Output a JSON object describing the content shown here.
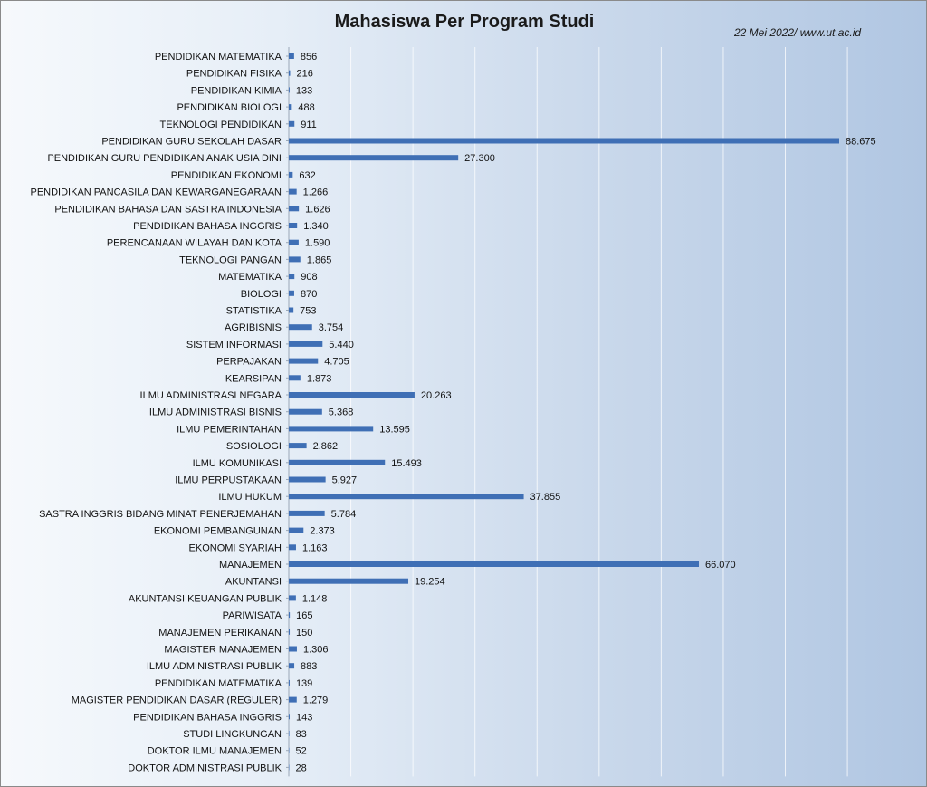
{
  "chart_data": {
    "type": "bar",
    "orientation": "horizontal",
    "title": "Mahasiswa Per Program Studi",
    "source_note": "22 Mei 2022/ www.ut.ac.id",
    "categories": [
      "PENDIDIKAN MATEMATIKA",
      "PENDIDIKAN FISIKA",
      "PENDIDIKAN KIMIA",
      "PENDIDIKAN BIOLOGI",
      "TEKNOLOGI PENDIDIKAN",
      "PENDIDIKAN GURU SEKOLAH DASAR",
      "PENDIDIKAN GURU PENDIDIKAN ANAK USIA DINI",
      "PENDIDIKAN EKONOMI",
      "PENDIDIKAN PANCASILA DAN KEWARGANEGARAAN",
      "PENDIDIKAN BAHASA DAN SASTRA INDONESIA",
      "PENDIDIKAN BAHASA INGGRIS",
      "PERENCANAAN WILAYAH DAN KOTA",
      "TEKNOLOGI PANGAN",
      "MATEMATIKA",
      "BIOLOGI",
      "STATISTIKA",
      "AGRIBISNIS",
      "SISTEM INFORMASI",
      "PERPAJAKAN",
      "KEARSIPAN",
      "ILMU ADMINISTRASI NEGARA",
      "ILMU ADMINISTRASI BISNIS",
      "ILMU PEMERINTAHAN",
      "SOSIOLOGI",
      "ILMU KOMUNIKASI",
      "ILMU PERPUSTAKAAN",
      "ILMU HUKUM",
      "SASTRA INGGRIS BIDANG MINAT PENERJEMAHAN",
      "EKONOMI PEMBANGUNAN",
      "EKONOMI SYARIAH",
      "MANAJEMEN",
      "AKUNTANSI",
      "AKUNTANSI KEUANGAN PUBLIK",
      "PARIWISATA",
      "MANAJEMEN PERIKANAN",
      "MAGISTER MANAJEMEN",
      "ILMU ADMINISTRASI PUBLIK",
      "PENDIDIKAN MATEMATIKA",
      "MAGISTER PENDIDIKAN DASAR (REGULER)",
      "PENDIDIKAN BAHASA INGGRIS",
      "STUDI LINGKUNGAN",
      "DOKTOR ILMU MANAJEMEN",
      "DOKTOR ADMINISTRASI PUBLIK"
    ],
    "values": [
      856,
      216,
      133,
      488,
      911,
      88675,
      27300,
      632,
      1266,
      1626,
      1340,
      1590,
      1865,
      908,
      870,
      753,
      3754,
      5440,
      4705,
      1873,
      20263,
      5368,
      13595,
      2862,
      15493,
      5927,
      37855,
      5784,
      2373,
      1163,
      66070,
      19254,
      1148,
      165,
      150,
      1306,
      883,
      139,
      1279,
      143,
      83,
      52,
      28
    ],
    "value_labels": [
      "856",
      "216",
      "133",
      "488",
      "911",
      "88.675",
      "27.300",
      "632",
      "1.266",
      "1.626",
      "1.340",
      "1.590",
      "1.865",
      "908",
      "870",
      "753",
      "3.754",
      "5.440",
      "4.705",
      "1.873",
      "20.263",
      "5.368",
      "13.595",
      "2.862",
      "15.493",
      "5.927",
      "37.855",
      "5.784",
      "2.373",
      "1.163",
      "66.070",
      "19.254",
      "1.148",
      "165",
      "150",
      "1.306",
      "883",
      "139",
      "1.279",
      "143",
      "83",
      "52",
      "28"
    ],
    "xlim": [
      0,
      100000
    ],
    "grid_step": 10000,
    "xlabel": "",
    "ylabel": "",
    "bar_color": "#3f6fb5",
    "grid": true,
    "legend": "none"
  }
}
